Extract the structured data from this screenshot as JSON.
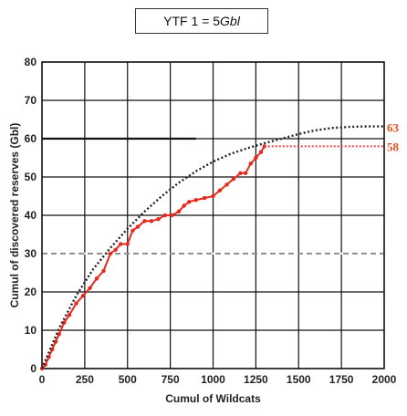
{
  "chart_data": {
    "type": "line",
    "title": {
      "prefix": "YTF 1 = 5 ",
      "unit": "Gbl"
    },
    "xlabel": "Cumul of  Wildcats",
    "ylabel": "Cumul of discovered reserves (Gbl)",
    "xlim": [
      0,
      2000
    ],
    "ylim": [
      0,
      80
    ],
    "x_ticks": [
      "0",
      "250",
      "500",
      "750",
      "1000",
      "1250",
      "1500",
      "1750",
      "2000"
    ],
    "y_ticks": [
      "0",
      "10",
      "20",
      "30",
      "40",
      "50",
      "60",
      "70",
      "80"
    ],
    "grid": true,
    "series": [
      {
        "color": "#e8281c",
        "style": "solid-markers",
        "x": [
          0,
          20,
          40,
          60,
          80,
          100,
          130,
          160,
          200,
          240,
          280,
          320,
          360,
          400,
          430,
          460,
          500,
          530,
          560,
          600,
          640,
          680,
          720,
          760,
          800,
          830,
          860,
          900,
          950,
          1000,
          1040,
          1080,
          1120,
          1160,
          1190,
          1220,
          1250,
          1280,
          1300
        ],
        "y": [
          0,
          1,
          3,
          5,
          7,
          9,
          12,
          14,
          17,
          19,
          21,
          23.5,
          25.5,
          30,
          31,
          32.5,
          32.5,
          36,
          37,
          38.5,
          38.5,
          39,
          40,
          40,
          41,
          42.5,
          43.5,
          44,
          44.5,
          45,
          46.5,
          48,
          49.5,
          51,
          51,
          53.5,
          55,
          56.5,
          58
        ]
      },
      {
        "color": "#222222",
        "style": "dotted",
        "x": [
          0,
          100,
          200,
          300,
          400,
          500,
          600,
          700,
          800,
          900,
          1000,
          1100,
          1200,
          1300,
          1400,
          1500,
          1600,
          1700,
          1800,
          1900,
          2000
        ],
        "y": [
          0,
          10.5,
          19,
          26,
          31.5,
          36.5,
          41,
          45,
          48.5,
          51.5,
          54,
          56,
          57.5,
          58.8,
          60,
          61.2,
          62.2,
          62.8,
          63.1,
          63.2,
          63.2
        ]
      },
      {
        "color": "#f04040",
        "style": "dotted-flat",
        "x": [
          1300,
          2000
        ],
        "y": [
          58,
          58
        ]
      }
    ],
    "annotations": [
      {
        "text": "63",
        "y": 63
      },
      {
        "text": "58",
        "y": 58
      }
    ]
  }
}
